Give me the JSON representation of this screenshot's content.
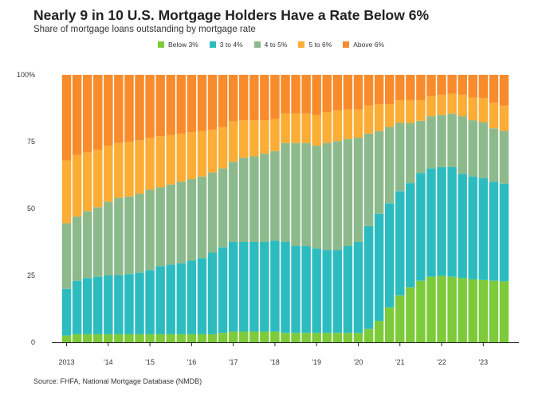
{
  "title": "Nearly 9 in 10 U.S. Mortgage Holders Have a Rate Below 6%",
  "subtitle": "Share of mortgage loans outstanding by mortgage rate",
  "source": "Source: FHFA, National Mortgage Database (NMDB)",
  "chart_data": {
    "type": "bar",
    "stacked": true,
    "frequency": "quarterly",
    "ylim": [
      0,
      100
    ],
    "y_ticks": [
      "0",
      "25",
      "50",
      "75",
      "100%"
    ],
    "y_tick_values": [
      0,
      25,
      50,
      75,
      100
    ],
    "x_tick_labels": [
      "2013",
      "'14",
      "'15",
      "'16",
      "'17",
      "'18",
      "'19",
      "'20",
      "'21",
      "'22",
      "'23"
    ],
    "grid": false,
    "legend_position": "top",
    "categories": [
      "2013 Q1",
      "2013 Q2",
      "2013 Q3",
      "2013 Q4",
      "2014 Q1",
      "2014 Q2",
      "2014 Q3",
      "2014 Q4",
      "2015 Q1",
      "2015 Q2",
      "2015 Q3",
      "2015 Q4",
      "2016 Q1",
      "2016 Q2",
      "2016 Q3",
      "2016 Q4",
      "2017 Q1",
      "2017 Q2",
      "2017 Q3",
      "2017 Q4",
      "2018 Q1",
      "2018 Q2",
      "2018 Q3",
      "2018 Q4",
      "2019 Q1",
      "2019 Q2",
      "2019 Q3",
      "2019 Q4",
      "2020 Q1",
      "2020 Q2",
      "2020 Q3",
      "2020 Q4",
      "2021 Q1",
      "2021 Q2",
      "2021 Q3",
      "2021 Q4",
      "2022 Q1",
      "2022 Q2",
      "2022 Q3",
      "2022 Q4",
      "2023 Q1",
      "2023 Q2",
      "2023 Q3"
    ],
    "series": [
      {
        "name": "Below 3%",
        "color": "#7dcb3a",
        "values": [
          2.5,
          3,
          3,
          3,
          3,
          3,
          3,
          3,
          3,
          3,
          3,
          3,
          3,
          3,
          3,
          3.5,
          4,
          4,
          4,
          4,
          4,
          3.5,
          3.5,
          3.5,
          3.5,
          3.5,
          3.5,
          3.5,
          3.5,
          5,
          8,
          13,
          17.5,
          20.5,
          23,
          24.5,
          24.8,
          24.5,
          24,
          23.5,
          23.3,
          23,
          22.8
        ]
      },
      {
        "name": "3 to 4%",
        "color": "#2cbcc0",
        "values": [
          17.5,
          20,
          21,
          21.5,
          22,
          22,
          22.5,
          23,
          24,
          25.5,
          26,
          26.5,
          27.5,
          28.5,
          30.5,
          32,
          33.5,
          33.5,
          33.5,
          33.5,
          34,
          34,
          32.5,
          32.5,
          31.5,
          31,
          31,
          32.5,
          34,
          38.5,
          40,
          39,
          39,
          39,
          40.3,
          40.5,
          40.7,
          41,
          39,
          38.5,
          38,
          37,
          36.5
        ]
      },
      {
        "name": "4 to 5%",
        "color": "#8dba8c",
        "values": [
          24.5,
          24,
          25,
          26,
          27.5,
          29,
          29,
          29.5,
          30,
          29.5,
          30,
          30.5,
          30.5,
          30.5,
          30,
          29.5,
          30,
          31.5,
          32,
          33,
          33.5,
          37,
          38.5,
          38.5,
          38.5,
          40,
          40.7,
          40,
          39,
          34.5,
          31,
          28.5,
          25.5,
          22.5,
          19.5,
          19.5,
          19.5,
          20,
          21.5,
          21,
          21,
          20,
          19.7
        ]
      },
      {
        "name": "5 to 6%",
        "color": "#fbad36",
        "values": [
          23.5,
          23,
          22,
          21.5,
          21,
          20.5,
          20.5,
          20,
          19.5,
          19,
          18.5,
          18,
          17.5,
          17,
          16,
          15.5,
          15,
          14,
          13.5,
          12.5,
          12,
          11,
          11,
          11,
          11.5,
          11.5,
          11.5,
          11,
          10.5,
          10.5,
          10,
          8.5,
          8.5,
          8.5,
          7.7,
          7.5,
          7.5,
          7.5,
          8,
          8.5,
          9,
          9.5,
          9.5
        ]
      },
      {
        "name": "Above 6%",
        "color": "#f88b2b",
        "values": [
          32,
          30,
          29,
          28,
          26.5,
          25.5,
          25,
          24.5,
          23.5,
          23,
          22.5,
          22,
          21.5,
          21,
          20.5,
          19.5,
          17.5,
          17,
          17,
          17,
          16.5,
          14.5,
          14.5,
          14.5,
          15,
          14,
          13.3,
          13,
          13,
          11.5,
          11,
          11,
          9.5,
          9.5,
          9.5,
          8,
          7.5,
          7,
          7.5,
          8.5,
          8.7,
          10.5,
          11.5
        ]
      }
    ]
  }
}
